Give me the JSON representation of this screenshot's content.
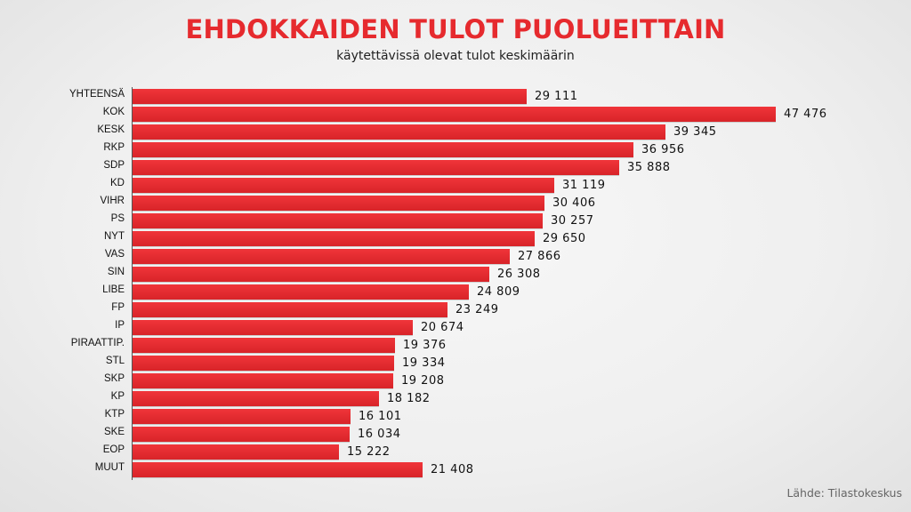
{
  "header": {
    "title": "EHDOKKAIDEN TULOT PUOLUEITTAIN",
    "subtitle": "käytettävissä olevat tulot keskimäärin"
  },
  "footer": {
    "source": "Lähde: Tilastokeskus"
  },
  "colors": {
    "title": "#e62a2e",
    "bar": "#e62a2e"
  },
  "chart_data": {
    "type": "bar",
    "orientation": "horizontal",
    "title": "EHDOKKAIDEN TULOT PUOLUEITTAIN",
    "subtitle": "käytettävissä olevat tulot keskimäärin",
    "xlabel": "",
    "ylabel": "",
    "grid": false,
    "legend": null,
    "xlim": [
      0,
      48000
    ],
    "categories": [
      "YHTEENSÄ",
      "KOK",
      "KESK",
      "RKP",
      "SDP",
      "KD",
      "VIHR",
      "PS",
      "NYT",
      "VAS",
      "SIN",
      "LIBE",
      "FP",
      "IP",
      "PIRAATTIP.",
      "STL",
      "SKP",
      "KP",
      "KTP",
      "SKE",
      "EOP",
      "MUUT"
    ],
    "values": [
      29111,
      47476,
      39345,
      36956,
      35888,
      31119,
      30406,
      30257,
      29650,
      27866,
      26308,
      24809,
      23249,
      20674,
      19376,
      19334,
      19208,
      18182,
      16101,
      16034,
      15222,
      21408
    ],
    "value_labels": [
      "29 111",
      "47 476",
      "39 345",
      "36 956",
      "35 888",
      "31 119",
      "30 406",
      "30 257",
      "29 650",
      "27 866",
      "26 308",
      "24 809",
      "23 249",
      "20 674",
      "19 376",
      "19 334",
      "19 208",
      "18 182",
      "16 101",
      "16 034",
      "15 222",
      "21 408"
    ],
    "annotations": [
      "Lähde: Tilastokeskus"
    ]
  }
}
